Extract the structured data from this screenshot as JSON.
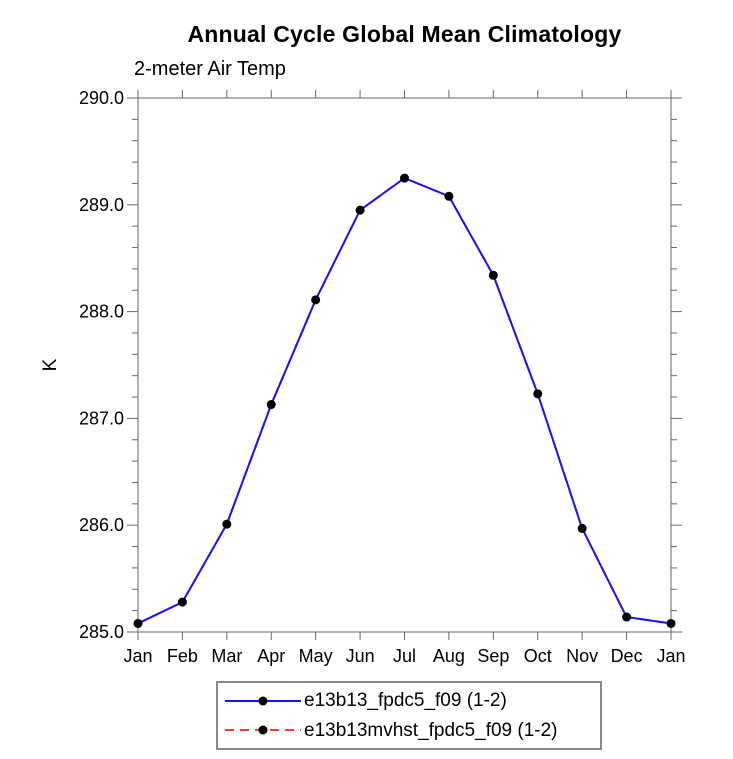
{
  "header": {
    "title": "Annual Cycle Global Mean Climatology",
    "subtitle": "2-meter Air Temp"
  },
  "chart_data": {
    "type": "line",
    "title": "Annual Cycle Global Mean Climatology",
    "subtitle": "2-meter Air Temp",
    "xlabel": "",
    "ylabel": "K",
    "categories": [
      "Jan",
      "Feb",
      "Mar",
      "Apr",
      "May",
      "Jun",
      "Jul",
      "Aug",
      "Sep",
      "Oct",
      "Nov",
      "Dec",
      "Jan"
    ],
    "series": [
      {
        "name": "e13b13_fpdc5_f09 (1-2)",
        "line_style": "solid",
        "marker": "filled-circle",
        "values": [
          285.08,
          285.28,
          286.01,
          287.13,
          288.11,
          288.95,
          289.25,
          289.08,
          288.34,
          287.23,
          285.97,
          285.14,
          285.08
        ]
      },
      {
        "name": "e13b13mvhst_fpdc5_f09 (1-2)",
        "line_style": "dashed",
        "marker": "filled-circle",
        "values": [
          285.08,
          285.28,
          286.01,
          287.13,
          288.11,
          288.95,
          289.25,
          289.08,
          288.34,
          287.23,
          285.97,
          285.14,
          285.08
        ]
      }
    ],
    "series_overlap_note": "second series coincides with first and is hidden beneath it in the plot",
    "ylim": [
      285.0,
      290.0
    ],
    "ytick_major_interval": 1.0,
    "ytick_minor_interval": 0.2,
    "ytick_labels": [
      "290.0",
      "289.0",
      "288.0",
      "287.0",
      "286.0",
      "285.0"
    ],
    "grid": false,
    "legend_position": "bottom-center"
  },
  "legend": {
    "entries": [
      {
        "label": "e13b13_fpdc5_f09 (1-2)"
      },
      {
        "label": "e13b13mvhst_fpdc5_f09 (1-2)"
      }
    ]
  },
  "colors": {
    "series_blue": "#1414ff",
    "series_red": "#ee4040",
    "marker": "#000000",
    "axis": "#666666",
    "text": "#000000",
    "legend_border": "#888888",
    "background": "#ffffff"
  }
}
